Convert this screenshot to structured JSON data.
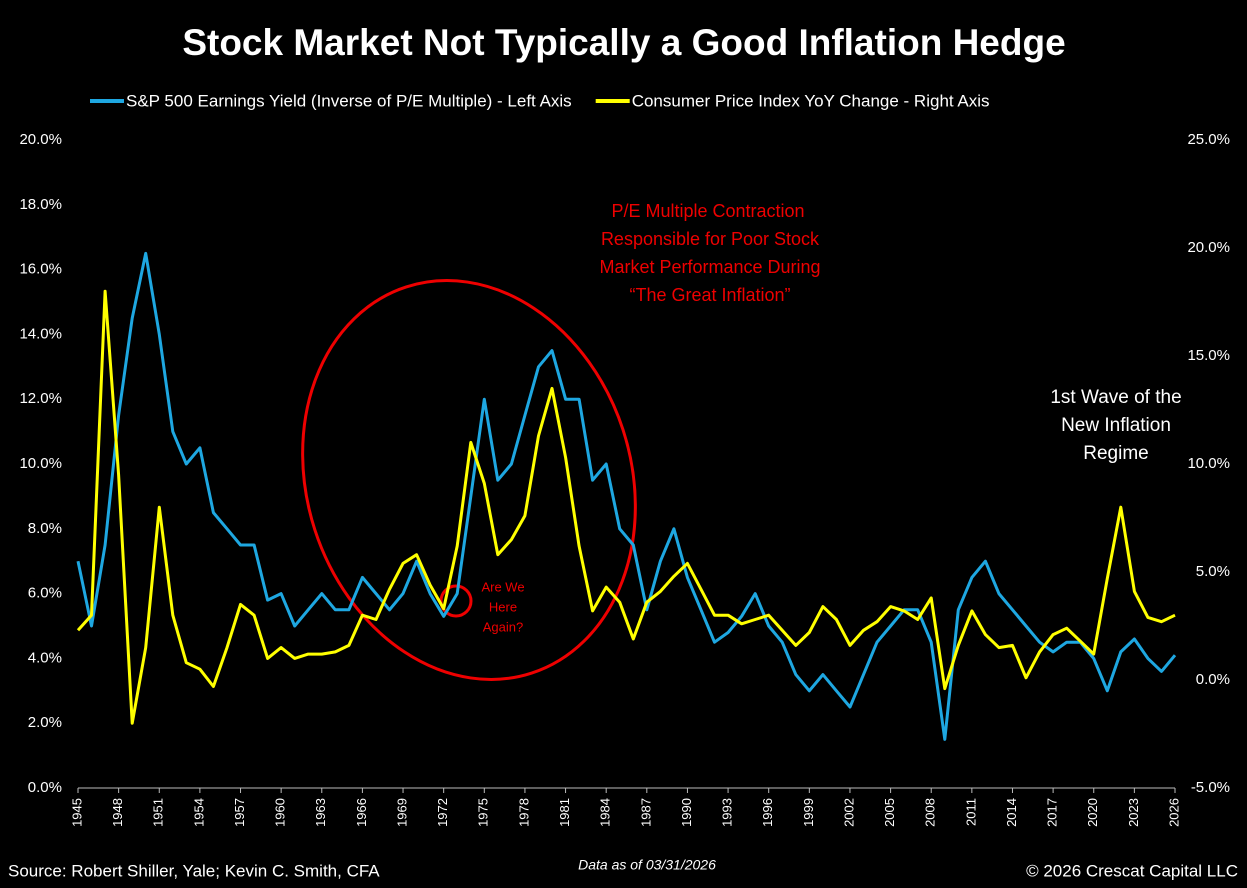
{
  "chart_data": {
    "type": "line",
    "title": "Stock Market Not Typically a Good Inflation Hedge",
    "legend": "top",
    "x": [
      1945,
      1946,
      1947,
      1948,
      1949,
      1950,
      1951,
      1952,
      1953,
      1954,
      1955,
      1956,
      1957,
      1958,
      1959,
      1960,
      1961,
      1962,
      1963,
      1964,
      1965,
      1966,
      1967,
      1968,
      1969,
      1970,
      1971,
      1972,
      1973,
      1974,
      1975,
      1976,
      1977,
      1978,
      1979,
      1980,
      1981,
      1982,
      1983,
      1984,
      1985,
      1986,
      1987,
      1988,
      1989,
      1990,
      1991,
      1992,
      1993,
      1994,
      1995,
      1996,
      1997,
      1998,
      1999,
      2000,
      2001,
      2002,
      2003,
      2004,
      2005,
      2006,
      2007,
      2008,
      2009,
      2010,
      2011,
      2012,
      2013,
      2014,
      2015,
      2016,
      2017,
      2018,
      2019,
      2020,
      2021,
      2022,
      2023,
      2024,
      2025,
      2026
    ],
    "xlim": [
      1945,
      2026
    ],
    "xticks": [
      1945,
      1948,
      1951,
      1954,
      1957,
      1960,
      1963,
      1966,
      1969,
      1972,
      1975,
      1978,
      1981,
      1984,
      1987,
      1990,
      1993,
      1996,
      1999,
      2002,
      2005,
      2008,
      2011,
      2014,
      2017,
      2020,
      2023,
      2026
    ],
    "ylim": [
      0,
      20
    ],
    "yticks": [
      {
        "value": 0,
        "label": "0.0%"
      },
      {
        "value": 2,
        "label": "2.0%"
      },
      {
        "value": 4,
        "label": "4.0%"
      },
      {
        "value": 6,
        "label": "6.0%"
      },
      {
        "value": 8,
        "label": "8.0%"
      },
      {
        "value": 10,
        "label": "10.0%"
      },
      {
        "value": 12,
        "label": "12.0%"
      },
      {
        "value": 14,
        "label": "14.0%"
      },
      {
        "value": 16,
        "label": "16.0%"
      },
      {
        "value": 18,
        "label": "18.0%"
      },
      {
        "value": 20,
        "label": "20.0%"
      }
    ],
    "y2lim": [
      -5,
      25
    ],
    "y2ticks": [
      {
        "value": -5,
        "label": "-5.0%"
      },
      {
        "value": 0,
        "label": "0.0%"
      },
      {
        "value": 5,
        "label": "5.0%"
      },
      {
        "value": 10,
        "label": "10.0%"
      },
      {
        "value": 15,
        "label": "15.0%"
      },
      {
        "value": 20,
        "label": "20.0%"
      },
      {
        "value": 25,
        "label": "25.0%"
      }
    ],
    "series": [
      {
        "name": "S&P 500 Earnings Yield (Inverse of P/E Multiple) - Left Axis",
        "color": "#1ea7e1",
        "values": [
          7.0,
          5.0,
          7.5,
          11.5,
          14.5,
          16.5,
          14.0,
          11.0,
          10.0,
          10.5,
          8.5,
          8.0,
          7.5,
          7.5,
          5.8,
          6.0,
          5.0,
          5.5,
          6.0,
          5.5,
          5.5,
          6.5,
          6.0,
          5.5,
          6.0,
          7.0,
          6.0,
          5.3,
          6.0,
          9.0,
          12.0,
          9.5,
          10.0,
          11.5,
          13.0,
          13.5,
          12.0,
          12.0,
          9.5,
          10.0,
          8.0,
          7.5,
          5.5,
          7.0,
          8.0,
          6.5,
          5.5,
          4.5,
          4.8,
          5.3,
          6.0,
          5.0,
          4.5,
          3.5,
          3.0,
          3.5,
          3.0,
          2.5,
          3.5,
          4.5,
          5.0,
          5.5,
          5.5,
          4.5,
          1.5,
          5.5,
          6.5,
          7.0,
          6.0,
          5.5,
          5.0,
          4.5,
          4.2,
          4.5,
          4.5,
          4.0,
          3.0,
          4.2,
          4.6,
          4.0,
          3.6,
          4.1
        ]
      },
      {
        "name": "Consumer Price Index YoY Change - Right Axis",
        "color": "#ffff00",
        "axis": "y2",
        "values": [
          2.3,
          3.0,
          18.0,
          9.5,
          -2.0,
          1.5,
          8.0,
          3.0,
          0.8,
          0.5,
          -0.3,
          1.5,
          3.5,
          3.0,
          1.0,
          1.5,
          1.0,
          1.2,
          1.2,
          1.3,
          1.6,
          3.0,
          2.8,
          4.2,
          5.4,
          5.8,
          4.4,
          3.3,
          6.2,
          11.0,
          9.1,
          5.8,
          6.5,
          7.6,
          11.3,
          13.5,
          10.3,
          6.2,
          3.2,
          4.3,
          3.6,
          1.9,
          3.6,
          4.1,
          4.8,
          5.4,
          4.2,
          3.0,
          3.0,
          2.6,
          2.8,
          3.0,
          2.3,
          1.6,
          2.2,
          3.4,
          2.8,
          1.6,
          2.3,
          2.7,
          3.4,
          3.2,
          2.8,
          3.8,
          -0.4,
          1.6,
          3.2,
          2.1,
          1.5,
          1.6,
          0.1,
          1.3,
          2.1,
          2.4,
          1.8,
          1.2,
          4.7,
          8.0,
          4.1,
          2.9,
          2.7,
          3.0
        ]
      }
    ],
    "annotations": {
      "great_inflation": [
        "P/E Multiple Contraction",
        "Responsible for Poor Stock",
        "Market Performance During",
        "“The Great Inflation”"
      ],
      "here_again": [
        "Are We",
        "Here",
        "Again?"
      ],
      "new_regime": [
        "1st Wave of the",
        "New Inflation",
        "Regime"
      ]
    },
    "source": "Source: Robert Shiller, Yale; Kevin C. Smith, CFA",
    "data_note": "Data as of 03/31/2026",
    "copyright": "© 2026 Crescat Capital LLC"
  }
}
